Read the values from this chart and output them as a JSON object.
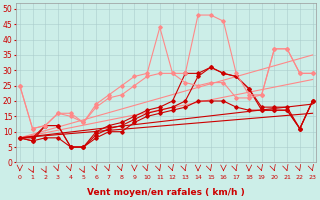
{
  "xlabel": "Vent moyen/en rafales ( km/h )",
  "background_color": "#cceee8",
  "grid_color": "#aacccc",
  "x_ticks": [
    0,
    1,
    2,
    3,
    4,
    5,
    6,
    7,
    8,
    9,
    10,
    11,
    12,
    13,
    14,
    15,
    16,
    17,
    18,
    19,
    20,
    21,
    22,
    23
  ],
  "y_ticks": [
    0,
    5,
    10,
    15,
    20,
    25,
    30,
    35,
    40,
    45,
    50
  ],
  "ylim": [
    0,
    52
  ],
  "xlim": [
    -0.3,
    23.3
  ],
  "series": [
    {
      "x": [
        0,
        1,
        2,
        3,
        4,
        5,
        6,
        7,
        8,
        9,
        10,
        11,
        12,
        13,
        14,
        15,
        16,
        17,
        18,
        19,
        20,
        21,
        22,
        23
      ],
      "y": [
        8,
        7,
        8,
        8,
        5,
        5,
        8,
        10,
        10,
        13,
        15,
        16,
        17,
        18,
        20,
        20,
        20,
        18,
        17,
        17,
        17,
        17,
        11,
        20
      ],
      "color": "#cc0000",
      "marker": "D",
      "markersize": 1.8,
      "linewidth": 0.8
    },
    {
      "x": [
        0,
        1,
        2,
        3,
        4,
        5,
        6,
        7,
        8,
        9,
        10,
        11,
        12,
        13,
        14,
        15,
        16,
        17,
        18,
        19,
        20,
        21,
        22,
        23
      ],
      "y": [
        8,
        7,
        12,
        12,
        5,
        5,
        9,
        11,
        12,
        14,
        16,
        17,
        18,
        20,
        28,
        31,
        29,
        28,
        24,
        17,
        17,
        17,
        11,
        20
      ],
      "color": "#cc0000",
      "marker": "D",
      "markersize": 1.8,
      "linewidth": 0.8
    },
    {
      "x": [
        0,
        1,
        2,
        3,
        4,
        5,
        6,
        7,
        8,
        9,
        10,
        11,
        12,
        13,
        14,
        15,
        16,
        17,
        18,
        19,
        20,
        21,
        22,
        23
      ],
      "y": [
        8,
        8,
        12,
        12,
        5,
        5,
        10,
        12,
        13,
        15,
        17,
        18,
        20,
        29,
        29,
        31,
        29,
        28,
        24,
        18,
        18,
        18,
        11,
        20
      ],
      "color": "#cc0000",
      "marker": "D",
      "markersize": 1.8,
      "linewidth": 0.8
    },
    {
      "x": [
        0,
        1,
        2,
        3,
        4,
        5,
        6,
        7,
        8,
        9,
        10,
        11,
        12,
        13,
        14,
        15,
        16,
        17,
        18,
        19,
        20,
        21,
        22,
        23
      ],
      "y": [
        25,
        11,
        12,
        16,
        15,
        13,
        18,
        21,
        22,
        25,
        28,
        29,
        29,
        26,
        25,
        26,
        26,
        21,
        21,
        22,
        37,
        37,
        29,
        29
      ],
      "color": "#ff8888",
      "marker": "D",
      "markersize": 1.8,
      "linewidth": 0.8
    },
    {
      "x": [
        0,
        1,
        2,
        3,
        4,
        5,
        6,
        7,
        8,
        9,
        10,
        11,
        12,
        13,
        14,
        15,
        16,
        17,
        18,
        19,
        20,
        21,
        22,
        23
      ],
      "y": [
        25,
        11,
        12,
        16,
        16,
        13,
        19,
        22,
        25,
        28,
        29,
        44,
        29,
        29,
        48,
        48,
        46,
        29,
        22,
        22,
        37,
        37,
        29,
        29
      ],
      "color": "#ff8888",
      "marker": "D",
      "markersize": 1.8,
      "linewidth": 0.8
    },
    {
      "x": [
        0,
        23
      ],
      "y": [
        8,
        35
      ],
      "color": "#ff8888",
      "marker": null,
      "linewidth": 0.8
    },
    {
      "x": [
        0,
        23
      ],
      "y": [
        8,
        27
      ],
      "color": "#ff8888",
      "marker": null,
      "linewidth": 0.8
    },
    {
      "x": [
        0,
        23
      ],
      "y": [
        8,
        19
      ],
      "color": "#cc0000",
      "marker": null,
      "linewidth": 0.8
    },
    {
      "x": [
        0,
        23
      ],
      "y": [
        8,
        16
      ],
      "color": "#cc0000",
      "marker": null,
      "linewidth": 0.8
    }
  ],
  "arrow_color": "#cc0000",
  "tick_fontsize": 4.5,
  "xlabel_fontsize": 6.5,
  "ylabel_fontsize": 5.5
}
